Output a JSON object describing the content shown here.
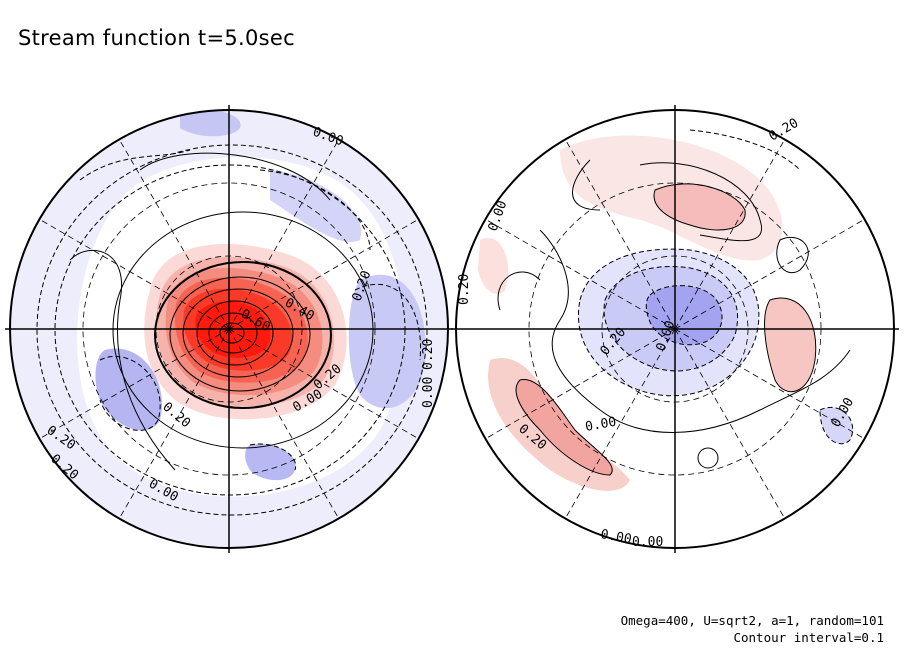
{
  "title": "Stream function t=5.0sec",
  "notes": {
    "params": "Omega=400, U=sqrt2, a=1, random=101",
    "interval": "Contour interval=0.1"
  },
  "colors": {
    "positive": "#ff2a1a",
    "negative": "#6a6af0",
    "positive_light": "#fbe3e3",
    "negative_light": "#e4e4fb"
  },
  "contour_labels": {
    "left": [
      "0.00",
      "0.20",
      "0.60",
      "0.40",
      "0.20",
      "0.00",
      "0.20",
      "0.00",
      "0.20",
      "0.20",
      "0.00",
      "0.20"
    ],
    "right": [
      "0.20",
      "0.00",
      "0.20",
      "0.00",
      "0.20",
      "0.20",
      "0.00",
      "0.00",
      "0.00",
      "0.00"
    ]
  }
}
